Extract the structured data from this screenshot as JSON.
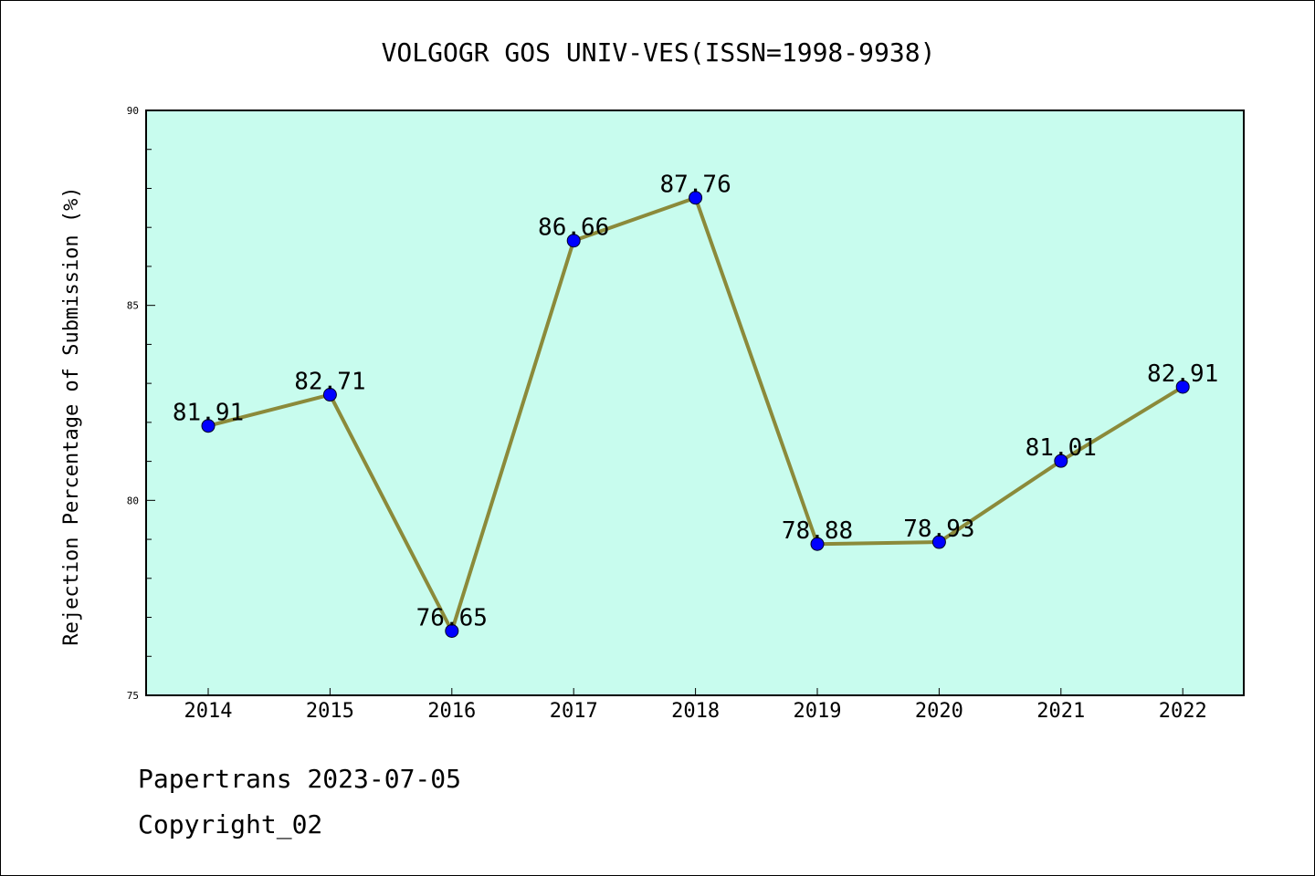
{
  "chart_data": {
    "type": "line",
    "title": "VOLGOGR GOS UNIV-VES(ISSN=1998-9938)",
    "xlabel": "",
    "ylabel": "Rejection Percentage of Submission (%)",
    "x": [
      "2014",
      "2015",
      "2016",
      "2017",
      "2018",
      "2019",
      "2020",
      "2021",
      "2022"
    ],
    "series": [
      {
        "values": [
          81.91,
          82.71,
          76.65,
          86.66,
          87.76,
          78.88,
          78.93,
          81.01,
          82.91
        ],
        "labels": [
          "81.91",
          "82.71",
          "76.65",
          "86.66",
          "87.76",
          "78.88",
          "78.93",
          "81.01",
          "82.91"
        ]
      }
    ],
    "ylim": [
      75,
      90
    ],
    "yticks": [
      "75",
      "80",
      "85",
      "90"
    ],
    "grid": false,
    "legend": "none",
    "colors": {
      "plot_background": "#c8fcee",
      "line": "#8b8a3a",
      "marker": "#0000ff"
    }
  },
  "footer": {
    "line1": "Papertrans 2023-07-05",
    "line2": "Copyright_02"
  }
}
